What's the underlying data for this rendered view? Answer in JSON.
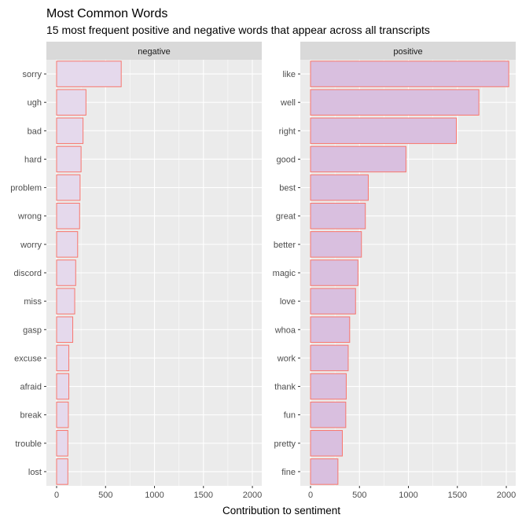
{
  "chart_data": {
    "type": "bar",
    "orientation": "horizontal",
    "title": "Most Common Words",
    "subtitle": "15 most frequent positive and negative words that appear across all transcripts",
    "xlabel": "Contribution to sentiment",
    "ylabel": "",
    "xlim": [
      0,
      2080
    ],
    "x_ticks": [
      0,
      500,
      1000,
      1500,
      2000
    ],
    "grid": true,
    "colors": {
      "fill": "#d9bfdf",
      "stroke": "#f8766d",
      "panel": "#ebebeb",
      "strip": "#d9d9d9",
      "grid": "#ffffff"
    },
    "panels": [
      {
        "name": "negative",
        "fill": "#e5d9ec",
        "categories": [
          "sorry",
          "ugh",
          "bad",
          "hard",
          "problem",
          "wrong",
          "worry",
          "discord",
          "miss",
          "gasp",
          "excuse",
          "afraid",
          "break",
          "trouble",
          "lost"
        ],
        "values": [
          660,
          300,
          270,
          250,
          240,
          235,
          215,
          195,
          185,
          165,
          125,
          125,
          120,
          115,
          115
        ]
      },
      {
        "name": "positive",
        "fill": "#d9bfdf",
        "categories": [
          "like",
          "well",
          "right",
          "good",
          "best",
          "great",
          "better",
          "magic",
          "love",
          "whoa",
          "work",
          "thank",
          "fun",
          "pretty",
          "fine"
        ],
        "values": [
          2025,
          1720,
          1490,
          975,
          590,
          560,
          520,
          485,
          460,
          400,
          385,
          365,
          360,
          325,
          280
        ]
      }
    ]
  }
}
